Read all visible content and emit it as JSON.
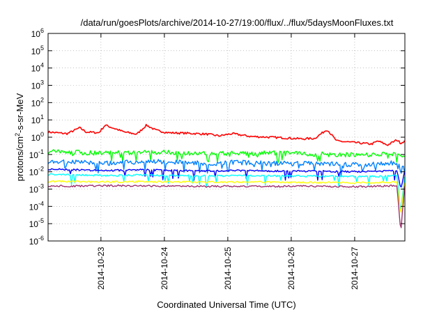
{
  "chart_data": {
    "type": "line",
    "title": "/data/run/goesPlots/archive/2014-10-27/19:00/flux/../flux/5daysMoonFluxes.txt",
    "xlabel": "Coordinated Universal Time (UTC)",
    "ylabel": {
      "base": "protons/cm",
      "sup": "2",
      "rest": "-s-sr-MeV"
    },
    "y_scale": "log",
    "ylim_exponents": [
      -6,
      6
    ],
    "y_tick_exponents": [
      -6,
      -5,
      -4,
      -3,
      -2,
      -1,
      0,
      1,
      2,
      3,
      4,
      5,
      6
    ],
    "y_tick_base": "10",
    "xlim": [
      "2014-10-22 04:00",
      "2014-10-27 19:00"
    ],
    "x_tick_labels": [
      "2014-10-23",
      "2014-10-24",
      "2014-10-25",
      "2014-10-26",
      "2014-10-27"
    ],
    "grid": true,
    "legend": "none",
    "series": [
      {
        "color": "#ff0000",
        "x_days": [
          0,
          0.3,
          0.5,
          0.6,
          0.8,
          0.9,
          1.2,
          1.4,
          1.55,
          1.7,
          1.9,
          2.2,
          2.5,
          2.7,
          2.9,
          3.2,
          3.5,
          3.75,
          4.0,
          4.2,
          4.4,
          4.55,
          4.8,
          5.1,
          5.2,
          5.35,
          5.5,
          5.56,
          5.62
        ],
        "y": [
          2.0,
          1.6,
          3.5,
          2.0,
          1.8,
          5.0,
          2.0,
          1.5,
          5.0,
          2.5,
          1.8,
          1.7,
          1.5,
          1.2,
          1.6,
          1.1,
          1.0,
          0.9,
          0.8,
          0.85,
          2.8,
          0.6,
          0.5,
          0.4,
          0.6,
          0.35,
          0.7,
          0.45,
          0.6
        ]
      },
      {
        "color": "#00ff00",
        "x_days": [
          0,
          0.5,
          1.0,
          1.5,
          2.0,
          2.5,
          3.0,
          3.5,
          4.0,
          4.5,
          5.0,
          5.3,
          5.5,
          5.56,
          5.62
        ],
        "y": [
          0.15,
          0.13,
          0.12,
          0.14,
          0.13,
          0.11,
          0.12,
          0.12,
          0.11,
          0.1,
          0.09,
          0.11,
          0.12,
          0.09,
          0.1
        ]
      },
      {
        "color": "#0080ff",
        "x_days": [
          0,
          0.5,
          1.0,
          1.5,
          2.0,
          2.5,
          3.0,
          3.5,
          4.0,
          4.5,
          5.0,
          5.3,
          5.5,
          5.56,
          5.62
        ],
        "y": [
          0.04,
          0.035,
          0.03,
          0.04,
          0.035,
          0.03,
          0.035,
          0.03,
          0.03,
          0.028,
          0.025,
          0.03,
          0.035,
          0.02,
          0.03
        ]
      },
      {
        "color": "#0000ff",
        "x_days": [
          0,
          0.5,
          1.0,
          1.5,
          2.0,
          2.5,
          3.0,
          3.5,
          4.0,
          4.5,
          5.0,
          5.3,
          5.5,
          5.56,
          5.62
        ],
        "y": [
          0.014,
          0.013,
          0.012,
          0.013,
          0.012,
          0.011,
          0.012,
          0.011,
          0.011,
          0.0105,
          0.01,
          0.011,
          0.012,
          0.001,
          0.01
        ]
      },
      {
        "color": "#00ffff",
        "x_days": [
          0,
          0.5,
          1.0,
          1.5,
          2.0,
          2.5,
          3.0,
          3.5,
          4.0,
          4.5,
          5.0,
          5.3,
          5.5,
          5.56,
          5.62
        ],
        "y": [
          0.007,
          0.0065,
          0.006,
          0.0065,
          0.006,
          0.0058,
          0.006,
          0.0058,
          0.0057,
          0.0055,
          0.0052,
          0.0056,
          0.006,
          4e-05,
          0.0055
        ]
      },
      {
        "color": "#ffff00",
        "x_days": [
          0,
          0.5,
          1.0,
          1.5,
          2.0,
          2.5,
          3.0,
          3.5,
          4.0,
          4.5,
          5.0,
          5.3,
          5.5,
          5.56,
          5.62
        ],
        "y": [
          0.0028,
          0.0027,
          0.0026,
          0.0027,
          0.0026,
          0.0025,
          0.0026,
          0.0025,
          0.0025,
          0.0024,
          0.0023,
          0.0025,
          0.0026,
          3e-05,
          0.0024
        ]
      },
      {
        "color": "#a0306e",
        "x_days": [
          0,
          0.5,
          1.0,
          1.5,
          2.0,
          2.5,
          3.0,
          3.5,
          4.0,
          4.5,
          5.0,
          5.3,
          5.5,
          5.56,
          5.62
        ],
        "y": [
          0.0015,
          0.0015,
          0.0016,
          0.0015,
          0.0015,
          0.0014,
          0.0015,
          0.0014,
          0.0015,
          0.0014,
          0.0014,
          0.0015,
          0.0016,
          3e-06,
          0.0013
        ]
      }
    ]
  }
}
